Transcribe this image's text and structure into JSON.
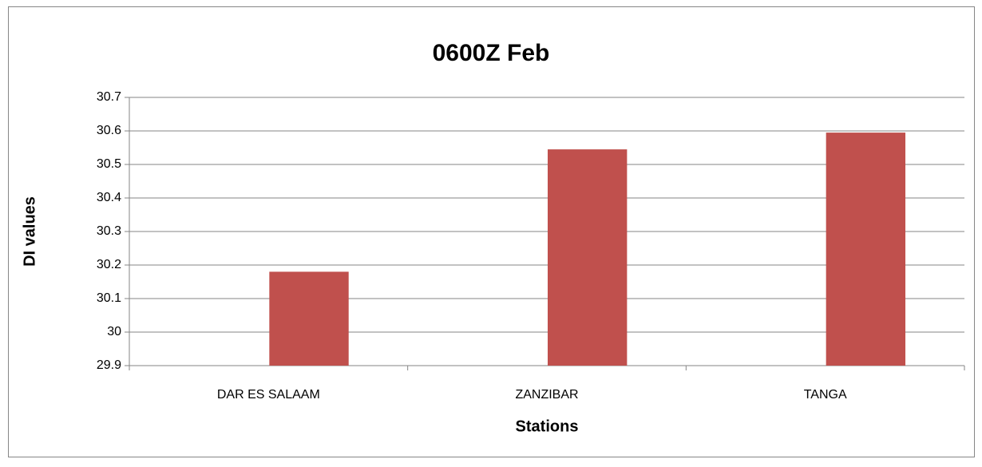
{
  "chart_data": {
    "type": "bar",
    "title": "0600Z Feb",
    "x_label": "Stations",
    "y_label": "DI values",
    "categories": [
      "DAR ES SALAAM",
      "ZANZIBAR",
      "TANGA"
    ],
    "values": [
      30.18,
      30.545,
      30.595
    ],
    "color": "#c0504d",
    "ylim": [
      29.9,
      30.7
    ],
    "yticks": [
      29.9,
      30,
      30.1,
      30.2,
      30.3,
      30.4,
      30.5,
      30.6,
      30.7
    ],
    "grid": true
  }
}
